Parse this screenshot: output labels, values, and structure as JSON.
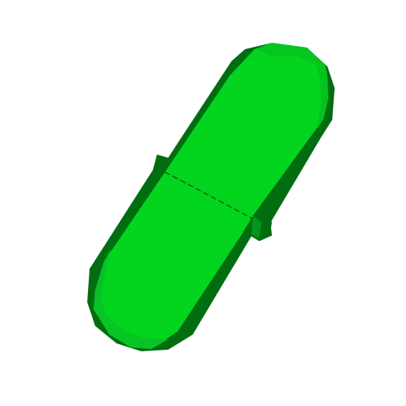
{
  "scene": {
    "subject": "green capsule",
    "colors": {
      "background": "#ffffff",
      "shadow": "#016d11",
      "face": "#03d41e",
      "highlight": "#08c425",
      "seam": "#024d0c"
    }
  }
}
